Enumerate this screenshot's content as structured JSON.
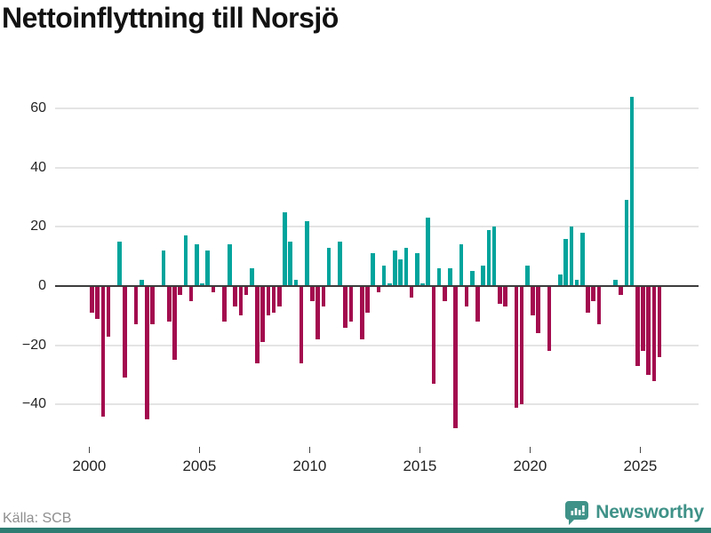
{
  "title": "Nettoinflyttning till Norsjö",
  "source": "Källa: SCB",
  "brand": {
    "name": "Newsworthy",
    "icon": "speech-bubble-bar-chart-icon",
    "color": "#3F9288"
  },
  "colors": {
    "positive_bar": "#00A49C",
    "negative_bar": "#A30B4E",
    "zero_axis": "#3C3C3C",
    "gridline": "#E4E4E4",
    "tick_label": "#262626",
    "source_text": "#8E8E8E",
    "bottom_strip": "#2E7C72"
  },
  "chart_data": {
    "type": "bar",
    "title": "Nettoinflyttning till Norsjö",
    "frequency": "quarterly",
    "grid": "horizontal",
    "ylim": [
      -50,
      67
    ],
    "y_ticks": [
      60,
      40,
      20,
      0,
      -20,
      -40
    ],
    "x_ticks": [
      "2000",
      "2005",
      "2010",
      "2015",
      "2020",
      "2025"
    ],
    "series_quarterly": [
      {
        "year": 2000,
        "q_values": [
          -9,
          -11,
          -44,
          -17
        ]
      },
      {
        "year": 2001,
        "q_values": [
          0,
          15,
          -31,
          0
        ]
      },
      {
        "year": 2002,
        "q_values": [
          -13,
          2,
          -45,
          -13
        ]
      },
      {
        "year": 2003,
        "q_values": [
          0,
          12,
          -12,
          -25
        ]
      },
      {
        "year": 2004,
        "q_values": [
          -3,
          17,
          -5,
          14
        ]
      },
      {
        "year": 2005,
        "q_values": [
          1,
          12,
          -2,
          0
        ]
      },
      {
        "year": 2006,
        "q_values": [
          -12,
          14,
          -7,
          -10
        ]
      },
      {
        "year": 2007,
        "q_values": [
          -3,
          6,
          -26,
          -19
        ]
      },
      {
        "year": 2008,
        "q_values": [
          -10,
          -9,
          -7,
          25
        ]
      },
      {
        "year": 2009,
        "q_values": [
          15,
          2,
          -26,
          22
        ]
      },
      {
        "year": 2010,
        "q_values": [
          -5,
          -18,
          -7,
          13
        ]
      },
      {
        "year": 2011,
        "q_values": [
          0,
          15,
          -14,
          -12
        ]
      },
      {
        "year": 2012,
        "q_values": [
          0,
          -18,
          -9,
          11
        ]
      },
      {
        "year": 2013,
        "q_values": [
          -2,
          7,
          1,
          12
        ]
      },
      {
        "year": 2014,
        "q_values": [
          9,
          13,
          -4,
          11
        ]
      },
      {
        "year": 2015,
        "q_values": [
          1,
          23,
          -33,
          6
        ]
      },
      {
        "year": 2016,
        "q_values": [
          -5,
          6,
          -48,
          14
        ]
      },
      {
        "year": 2017,
        "q_values": [
          -7,
          5,
          -12,
          7
        ]
      },
      {
        "year": 2018,
        "q_values": [
          19,
          20,
          -6,
          -7
        ]
      },
      {
        "year": 2019,
        "q_values": [
          0,
          -41,
          -40,
          7
        ]
      },
      {
        "year": 2020,
        "q_values": [
          -10,
          -16,
          0,
          -22
        ]
      },
      {
        "year": 2021,
        "q_values": [
          0,
          4,
          16,
          20
        ]
      },
      {
        "year": 2022,
        "q_values": [
          2,
          18,
          -9,
          -5
        ]
      },
      {
        "year": 2023,
        "q_values": [
          -13,
          0,
          0,
          2
        ]
      },
      {
        "year": 2024,
        "q_values": [
          -3,
          29,
          64,
          -27
        ]
      },
      {
        "year": 2025,
        "q_values": [
          -22,
          -30,
          -32,
          -24
        ]
      }
    ]
  }
}
